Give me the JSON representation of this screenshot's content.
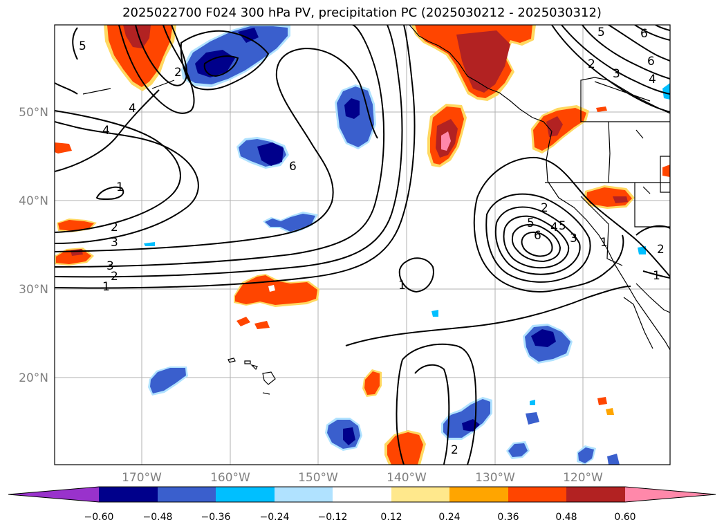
{
  "title": "2025022700 F024 300 hPa PV, precipitation PC (2025030212 - 2025030312)",
  "lat_labels": [
    "50°N",
    "40°N",
    "30°N",
    "20°N"
  ],
  "lon_labels": [
    "170°W",
    "160°W",
    "150°W",
    "140°W",
    "130°W",
    "120°W"
  ],
  "colorbar": {
    "tick_labels": [
      "−0.60",
      "−0.48",
      "−0.36",
      "−0.24",
      "−0.12",
      "0.12",
      "0.24",
      "0.36",
      "0.48",
      "0.60"
    ],
    "colors": [
      "#9932cc",
      "#00008b",
      "#3a5fcd",
      "#00bfff",
      "#b0e2ff",
      "#ffffff",
      "#ffe88c",
      "#ffa500",
      "#ff4500",
      "#b22222",
      "#ff88aa"
    ]
  },
  "contour_labels": {
    "west": [
      "5",
      "4",
      "4",
      "1",
      "2",
      "3",
      "3",
      "2",
      "1"
    ],
    "center": [
      "6",
      "1",
      "2"
    ],
    "east": [
      "5",
      "2",
      "6",
      "4",
      "2",
      "5",
      "3",
      "1",
      "5",
      "6",
      "1",
      "2",
      "3",
      "4",
      "6",
      "2"
    ]
  }
}
